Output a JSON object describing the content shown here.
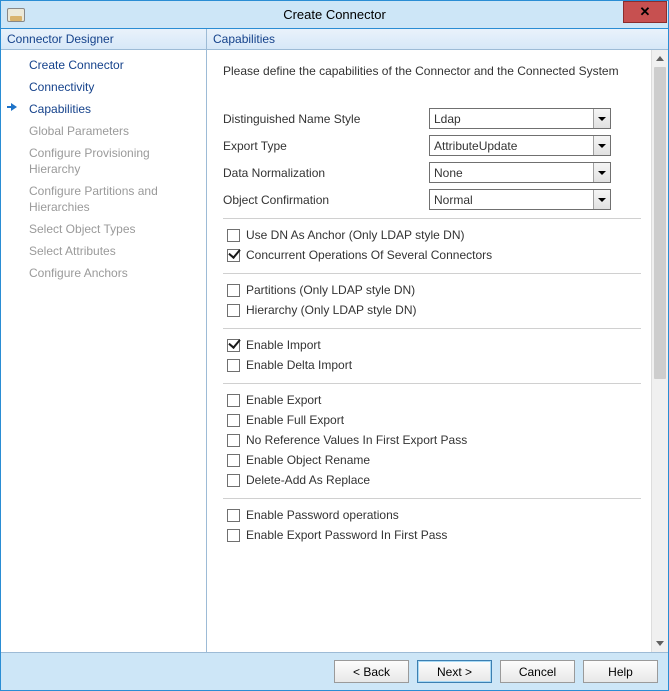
{
  "window": {
    "title": "Create Connector"
  },
  "sidebar": {
    "header": "Connector Designer",
    "items": [
      {
        "label": "Create Connector",
        "state": "enabled"
      },
      {
        "label": "Connectivity",
        "state": "enabled"
      },
      {
        "label": "Capabilities",
        "state": "current"
      },
      {
        "label": "Global Parameters",
        "state": "disabled"
      },
      {
        "label": "Configure Provisioning Hierarchy",
        "state": "disabled"
      },
      {
        "label": "Configure Partitions and Hierarchies",
        "state": "disabled"
      },
      {
        "label": "Select Object Types",
        "state": "disabled"
      },
      {
        "label": "Select Attributes",
        "state": "disabled"
      },
      {
        "label": "Configure Anchors",
        "state": "disabled"
      }
    ]
  },
  "content": {
    "header": "Capabilities",
    "instruction": "Please define the capabilities of the Connector and the Connected System",
    "selects": [
      {
        "label": "Distinguished Name Style",
        "value": "Ldap"
      },
      {
        "label": "Export Type",
        "value": "AttributeUpdate"
      },
      {
        "label": "Data Normalization",
        "value": "None"
      },
      {
        "label": "Object Confirmation",
        "value": "Normal"
      }
    ],
    "groups": [
      [
        {
          "label": "Use DN As Anchor (Only LDAP style DN)",
          "checked": false
        },
        {
          "label": "Concurrent Operations Of Several Connectors",
          "checked": true
        }
      ],
      [
        {
          "label": "Partitions (Only LDAP style DN)",
          "checked": false
        },
        {
          "label": "Hierarchy (Only LDAP style DN)",
          "checked": false
        }
      ],
      [
        {
          "label": "Enable Import",
          "checked": true
        },
        {
          "label": "Enable Delta Import",
          "checked": false
        }
      ],
      [
        {
          "label": "Enable Export",
          "checked": false
        },
        {
          "label": "Enable Full Export",
          "checked": false
        },
        {
          "label": "No Reference Values In First Export Pass",
          "checked": false
        },
        {
          "label": "Enable Object Rename",
          "checked": false
        },
        {
          "label": "Delete-Add As Replace",
          "checked": false
        }
      ],
      [
        {
          "label": "Enable Password operations",
          "checked": false
        },
        {
          "label": "Enable Export Password In First Pass",
          "checked": false
        }
      ]
    ]
  },
  "buttons": {
    "back": "<  Back",
    "next": "Next  >",
    "cancel": "Cancel",
    "help": "Help"
  },
  "colors": {
    "accent": "#2a8dd4",
    "titlebar_bg": "#cde6f7",
    "panel_header_text": "#15428b",
    "close_bg": "#c75050"
  }
}
